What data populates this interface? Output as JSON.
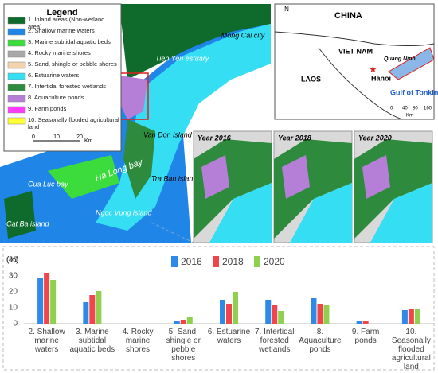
{
  "map": {
    "legend_title": "Legend",
    "legend": [
      {
        "label": "1. Inland areas (Non-wetland area)",
        "color": "#0e6b2b"
      },
      {
        "label": "2. Shallow marine waters",
        "color": "#1f86e8"
      },
      {
        "label": "3. Marine subtidal aquatic beds",
        "color": "#3bdc3b"
      },
      {
        "label": "4. Rocky marine shores",
        "color": "#a8a8a8"
      },
      {
        "label": "5. Sand, shingle or pebble shores",
        "color": "#f3d3ad"
      },
      {
        "label": "6. Estuarine waters",
        "color": "#35def2"
      },
      {
        "label": "7. Intertidal forested wetlands",
        "color": "#2e8b3d"
      },
      {
        "label": "8. Aquaculture ponds",
        "color": "#b57fd8"
      },
      {
        "label": "9. Farm ponds",
        "color": "#ff3cff"
      },
      {
        "label": "10. Seasonally flooded agricultural land",
        "color": "#ffff33"
      }
    ],
    "scale": [
      "0",
      "10",
      "20",
      "Km"
    ],
    "places": [
      "Mong Cai city",
      "Tien Yen estuary",
      "Van Don island",
      "Tra Ban island",
      "Cua Luc bay",
      "Ha Long bay",
      "Ngoc Vung island",
      "Cat Ba island"
    ],
    "inset": {
      "north": "N",
      "labels": [
        "CHINA",
        "VIET NAM",
        "LAOS",
        "Hanoi",
        "Quang Ninh",
        "Gulf of Tonkin"
      ],
      "scale": [
        "0",
        "40",
        "80",
        "160",
        "Km"
      ]
    },
    "years": [
      "Year 2016",
      "Year 2018",
      "Year 2020"
    ]
  },
  "chart_data": {
    "type": "bar",
    "ylabel": "(%)",
    "categories": [
      "2. Shallow marine waters",
      "3. Marine subtidal aquatic beds",
      "4. Rocky marine shores",
      "5. Sand, shingle or pebble shores",
      "6. Estuarine waters",
      "7. Intertidal forested wetlands",
      "8. Aquaculture ponds",
      "9. Farm ponds",
      "10. Seasonally flooded agricultural land"
    ],
    "series": [
      {
        "name": "2016",
        "color": "#2e8ae6",
        "values": [
          29,
          13.5,
          0,
          1.5,
          15,
          15,
          16,
          2,
          8.5
        ]
      },
      {
        "name": "2018",
        "color": "#f0454a",
        "values": [
          32,
          18,
          0,
          2.5,
          12.5,
          11.5,
          12.5,
          2,
          9
        ]
      },
      {
        "name": "2020",
        "color": "#8fd14f",
        "values": [
          27.5,
          20.5,
          0,
          4,
          20,
          8,
          11.5,
          0,
          9
        ]
      }
    ],
    "ylim": [
      0,
      40
    ],
    "yticks": [
      0,
      10,
      20,
      30,
      40
    ],
    "grid": false,
    "legend": "top"
  }
}
